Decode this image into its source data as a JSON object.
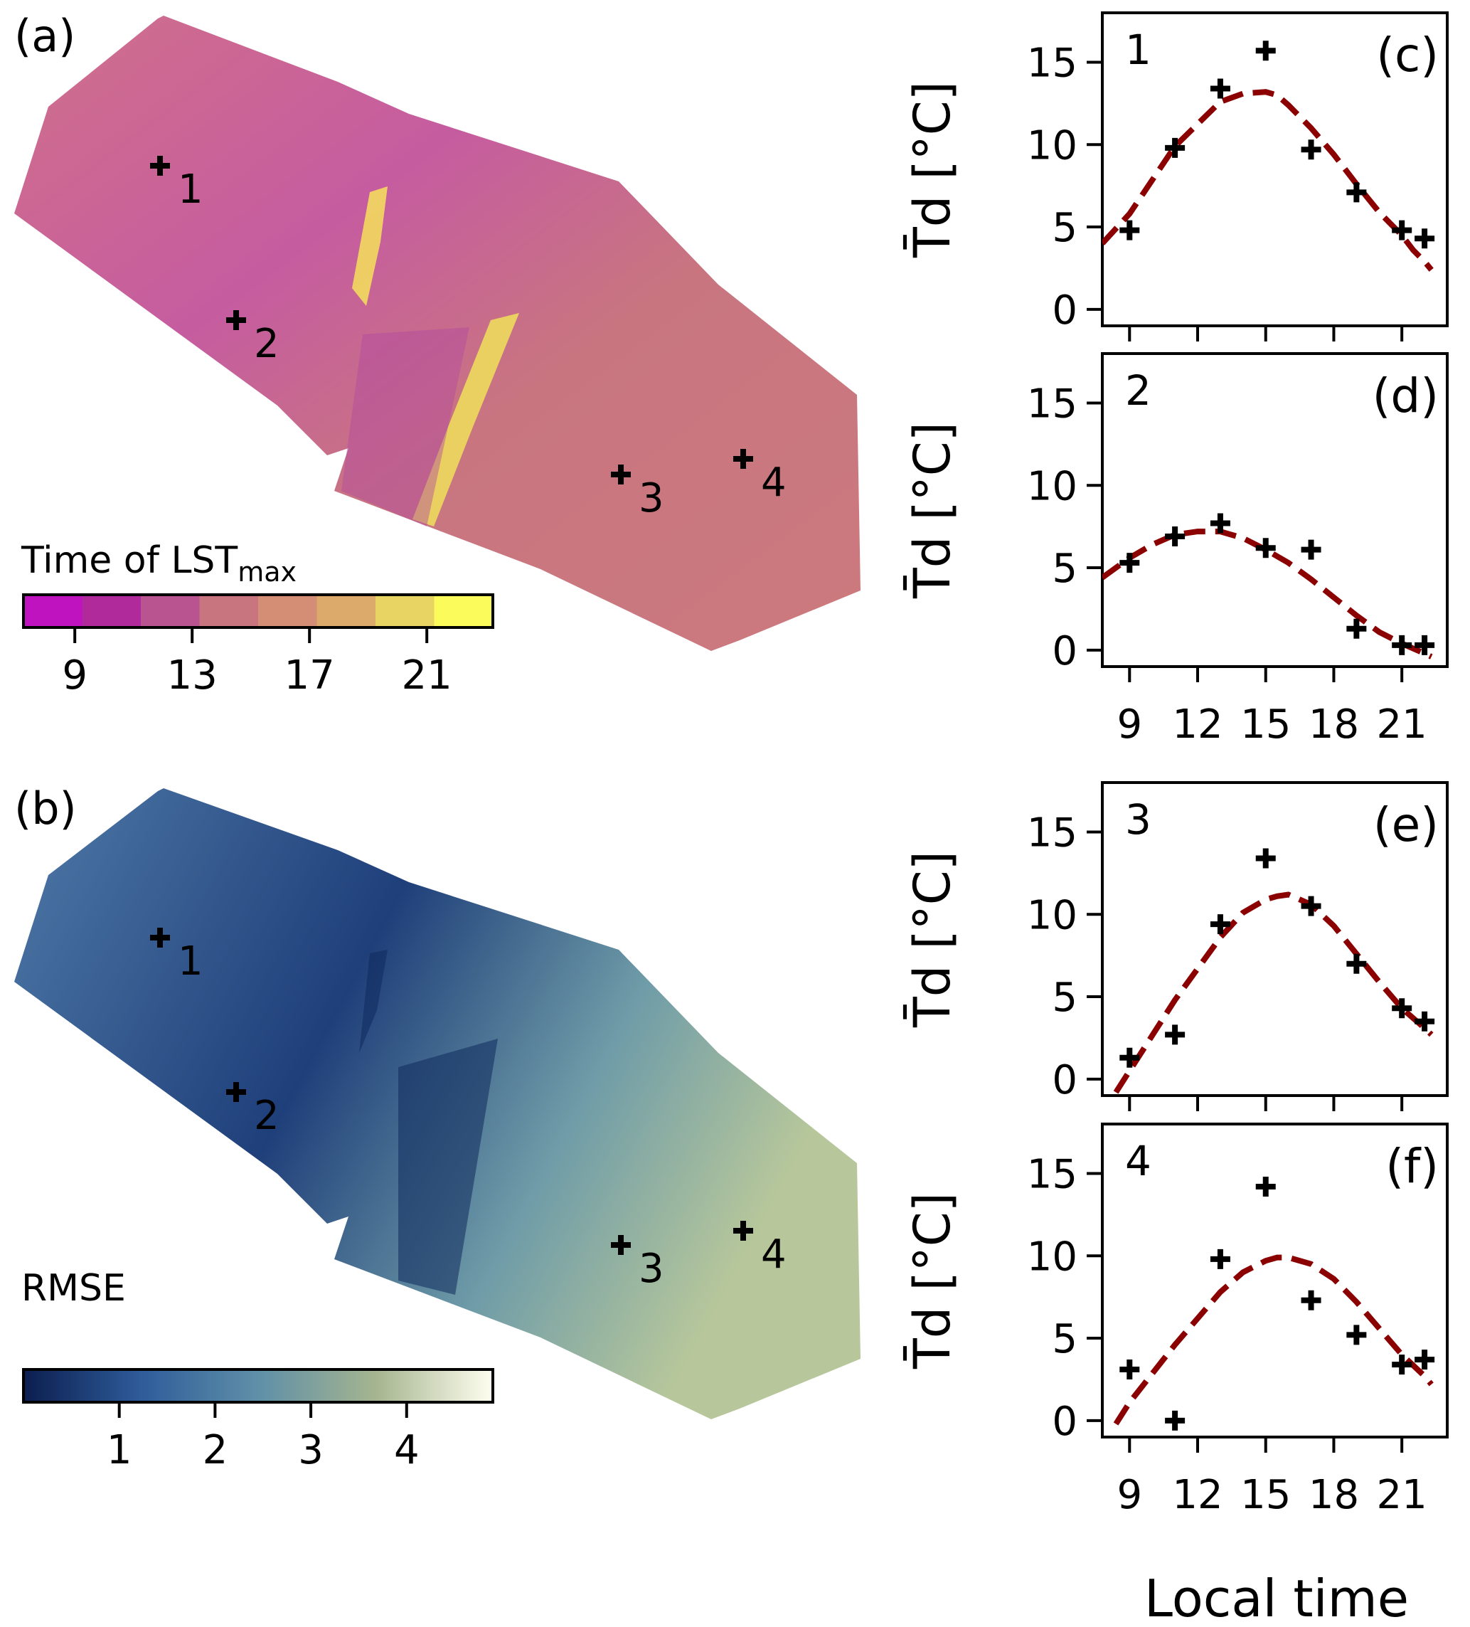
{
  "maps": {
    "a": {
      "panel_label": "(a)",
      "colorbar_title_prefix": "Time of LST",
      "colorbar_title_sub": "max",
      "colorbar_colors": [
        "#c013c0",
        "#b02a9c",
        "#b95491",
        "#c87580",
        "#d58e76",
        "#dcab6c",
        "#e7d463",
        "#fbfb5c"
      ],
      "ticks": [
        "9",
        "13",
        "17",
        "21"
      ],
      "tick_values": [
        9,
        13,
        17,
        21
      ],
      "range": [
        7.25,
        23.25
      ],
      "points": [
        "1",
        "2",
        "3",
        "4"
      ]
    },
    "b": {
      "panel_label": "(b)",
      "colorbar_title": "RMSE",
      "ticks": [
        "1",
        "2",
        "3",
        "4"
      ],
      "tick_values": [
        1,
        2,
        3,
        4
      ],
      "range": [
        0,
        4.9
      ],
      "points": [
        "1",
        "2",
        "3",
        "4"
      ]
    }
  },
  "chart_data": [
    {
      "type": "scatter+line",
      "panel": "(c)",
      "point_label": "1",
      "ylabel": "T̄d [°C]",
      "ylim": [
        -1,
        18
      ],
      "xlim": [
        7.8,
        23
      ],
      "yticks": [
        "0",
        "5",
        "10",
        "15"
      ],
      "ytick_values": [
        0,
        5,
        10,
        15
      ],
      "xticks": [
        "9",
        "12",
        "15",
        "18",
        "21"
      ],
      "xtick_values": [
        9,
        12,
        15,
        18,
        21
      ],
      "observed": {
        "x": [
          9,
          11,
          13,
          15,
          17,
          19,
          21,
          22
        ],
        "y": [
          4.8,
          9.8,
          13.4,
          15.7,
          9.7,
          7.1,
          4.8,
          4.3
        ]
      },
      "fit": {
        "x": [
          7.8,
          9,
          11,
          13,
          14,
          15,
          15.5,
          16,
          17,
          18,
          19,
          20,
          21,
          21.5,
          22,
          22.3
        ],
        "y": [
          4.0,
          5.8,
          9.9,
          12.6,
          13.1,
          13.2,
          13.0,
          12.4,
          11.0,
          9.4,
          7.6,
          5.9,
          4.5,
          3.6,
          2.9,
          2.4
        ]
      }
    },
    {
      "type": "scatter+line",
      "panel": "(d)",
      "point_label": "2",
      "ylabel": "T̄d [°C]",
      "ylim": [
        -1,
        18
      ],
      "xlim": [
        7.8,
        23
      ],
      "yticks": [
        "0",
        "5",
        "10",
        "15"
      ],
      "ytick_values": [
        0,
        5,
        10,
        15
      ],
      "xticks": [
        "9",
        "12",
        "15",
        "18",
        "21"
      ],
      "xtick_values": [
        9,
        12,
        15,
        18,
        21
      ],
      "observed": {
        "x": [
          9,
          11,
          13,
          15,
          17,
          19,
          21,
          22
        ],
        "y": [
          5.3,
          6.9,
          7.7,
          6.2,
          6.1,
          1.3,
          0.3,
          0.3
        ]
      },
      "fit": {
        "x": [
          7.8,
          9,
          10,
          11,
          12,
          13,
          14,
          15,
          16,
          17,
          18,
          19,
          20,
          21,
          22,
          22.3
        ],
        "y": [
          4.4,
          5.6,
          6.4,
          7.0,
          7.2,
          7.2,
          6.8,
          6.1,
          5.3,
          4.3,
          3.2,
          2.1,
          1.1,
          0.4,
          -0.2,
          -0.4
        ]
      }
    },
    {
      "type": "scatter+line",
      "panel": "(e)",
      "point_label": "3",
      "ylabel": "T̄d [°C]",
      "ylim": [
        -1,
        18
      ],
      "xlim": [
        7.8,
        23
      ],
      "yticks": [
        "0",
        "5",
        "10",
        "15"
      ],
      "ytick_values": [
        0,
        5,
        10,
        15
      ],
      "xticks": [
        "9",
        "12",
        "15",
        "18",
        "21"
      ],
      "xtick_values": [
        9,
        12,
        15,
        18,
        21
      ],
      "observed": {
        "x": [
          9,
          11,
          13,
          15,
          17,
          19,
          21,
          22
        ],
        "y": [
          1.3,
          2.7,
          9.4,
          13.4,
          10.5,
          7.0,
          4.3,
          3.5
        ]
      },
      "fit": {
        "x": [
          8.4,
          9,
          11,
          13,
          14,
          15,
          15.5,
          16,
          17,
          18,
          19,
          20,
          21,
          22,
          22.3
        ],
        "y": [
          -0.8,
          0.5,
          4.8,
          8.6,
          10.1,
          10.9,
          11.1,
          11.2,
          10.6,
          9.3,
          7.6,
          5.9,
          4.3,
          3.1,
          2.7
        ]
      }
    },
    {
      "type": "scatter+line",
      "panel": "(f)",
      "point_label": "4",
      "ylabel": "T̄d [°C]",
      "ylim": [
        -1,
        18
      ],
      "xlim": [
        7.8,
        23
      ],
      "yticks": [
        "0",
        "5",
        "10",
        "15"
      ],
      "ytick_values": [
        0,
        5,
        10,
        15
      ],
      "xticks": [
        "9",
        "12",
        "15",
        "18",
        "21"
      ],
      "xtick_values": [
        9,
        12,
        15,
        18,
        21
      ],
      "xlabel": "Local time",
      "observed": {
        "x": [
          9,
          11,
          13,
          15,
          17,
          19,
          21,
          22
        ],
        "y": [
          3.1,
          0.0,
          9.8,
          14.2,
          7.3,
          5.2,
          3.4,
          3.7
        ]
      },
      "fit": {
        "x": [
          8.4,
          9,
          11,
          13,
          14,
          15,
          15.5,
          16,
          17,
          18,
          19,
          20,
          21,
          22,
          22.3
        ],
        "y": [
          -0.2,
          1.1,
          4.6,
          7.8,
          9.0,
          9.7,
          9.9,
          9.9,
          9.5,
          8.6,
          7.2,
          5.6,
          4.0,
          2.7,
          2.2
        ]
      }
    }
  ]
}
